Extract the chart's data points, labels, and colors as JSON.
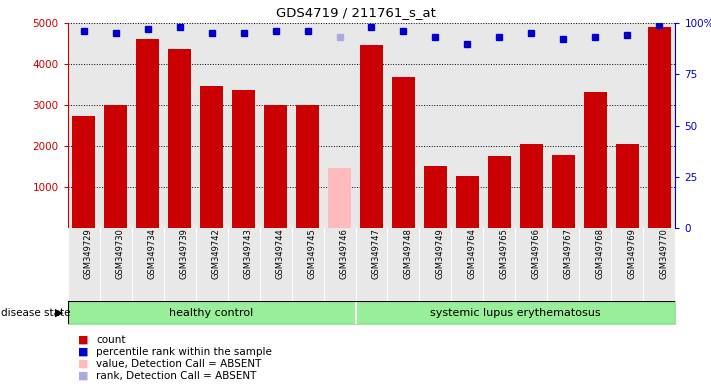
{
  "title": "GDS4719 / 211761_s_at",
  "samples": [
    "GSM349729",
    "GSM349730",
    "GSM349734",
    "GSM349739",
    "GSM349742",
    "GSM349743",
    "GSM349744",
    "GSM349745",
    "GSM349746",
    "GSM349747",
    "GSM349748",
    "GSM349749",
    "GSM349764",
    "GSM349765",
    "GSM349766",
    "GSM349767",
    "GSM349768",
    "GSM349769",
    "GSM349770"
  ],
  "counts": [
    2730,
    3000,
    4600,
    4380,
    3470,
    3380,
    3000,
    3000,
    1480,
    4460,
    3680,
    1520,
    1280,
    1770,
    2050,
    1790,
    3310,
    2050,
    4900
  ],
  "absent": [
    false,
    false,
    false,
    false,
    false,
    false,
    false,
    false,
    true,
    false,
    false,
    false,
    false,
    false,
    false,
    false,
    false,
    false,
    false
  ],
  "percentile_ranks": [
    96,
    95,
    97,
    98,
    95,
    95,
    96,
    96,
    93,
    98,
    96,
    93,
    90,
    93,
    95,
    92,
    93,
    94,
    99
  ],
  "absent_rank": [
    false,
    false,
    false,
    false,
    false,
    false,
    false,
    false,
    true,
    false,
    false,
    false,
    false,
    false,
    false,
    false,
    false,
    false,
    false
  ],
  "healthy_control_count": 9,
  "disease_label_healthy": "healthy control",
  "disease_label_sle": "systemic lupus erythematosus",
  "disease_state_label": "disease state",
  "bar_color_present": "#cc0000",
  "bar_color_absent": "#ffbbbb",
  "dot_color_present": "#0000cc",
  "dot_color_absent": "#aaaadd",
  "ylim_left": [
    0,
    5000
  ],
  "ylim_right": [
    0,
    100
  ],
  "yticks_left": [
    1000,
    2000,
    3000,
    4000,
    5000
  ],
  "yticks_right": [
    0,
    25,
    50,
    75,
    100
  ],
  "background_color": "#ffffff",
  "bar_area_bg": "#e8e8e8",
  "healthy_bg": "#99ee99",
  "sle_bg": "#99ee99",
  "legend_items": [
    {
      "label": "count",
      "color": "#cc0000"
    },
    {
      "label": "percentile rank within the sample",
      "color": "#0000cc"
    },
    {
      "label": "value, Detection Call = ABSENT",
      "color": "#ffbbbb"
    },
    {
      "label": "rank, Detection Call = ABSENT",
      "color": "#aaaadd"
    }
  ]
}
